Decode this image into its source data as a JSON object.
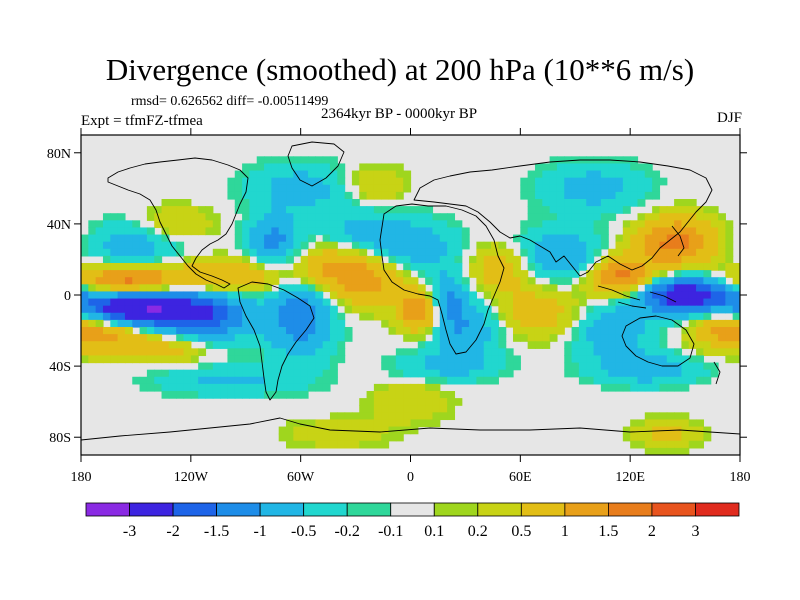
{
  "title": "Divergence (smoothed) at 200 hPa (10**6 m/s)",
  "stats": "rmsd= 0.626562 diff= -0.00511499",
  "period": "2364kyr BP - 0000kyr BP",
  "experiment": "Expt = tfmFZ-tfmea",
  "season": "DJF",
  "axes": {
    "y_ticks": [
      {
        "label": "80N",
        "lat": 80
      },
      {
        "label": "40N",
        "lat": 40
      },
      {
        "label": "0",
        "lat": 0
      },
      {
        "label": "40S",
        "lat": -40
      },
      {
        "label": "80S",
        "lat": -80
      }
    ],
    "x_ticks": [
      {
        "label": "180",
        "lon": -180
      },
      {
        "label": "120W",
        "lon": -120
      },
      {
        "label": "60W",
        "lon": -60
      },
      {
        "label": "0",
        "lon": 0
      },
      {
        "label": "60E",
        "lon": 60
      },
      {
        "label": "120E",
        "lon": 120
      },
      {
        "label": "180",
        "lon": 180
      }
    ],
    "lon_range": [
      -180,
      180
    ],
    "lat_range": [
      -90,
      90
    ]
  },
  "colorbar": {
    "colors": [
      "#8a2ae3",
      "#3d24e0",
      "#1e64e8",
      "#1e8de8",
      "#21b6e5",
      "#21d7cf",
      "#2fd79a",
      "#e6e6e6",
      "#9fd61e",
      "#c8d315",
      "#e2be16",
      "#e8a019",
      "#e87d1c",
      "#e8541e",
      "#e02b1e"
    ],
    "labels": [
      "-3",
      "-2",
      "-1.5",
      "-1",
      "-0.5",
      "-0.2",
      "-0.1",
      "0.1",
      "0.2",
      "0.5",
      "1",
      "1.5",
      "2",
      "3"
    ]
  },
  "field_blobs": [
    {
      "lon": -150,
      "lat": -8,
      "rl": 50,
      "rh": 8,
      "v": -3.2
    },
    {
      "lon": -110,
      "lat": -12,
      "rl": 35,
      "rh": 10,
      "v": -1.4
    },
    {
      "lon": -155,
      "lat": 8,
      "rl": 40,
      "rh": 6,
      "v": 2.0
    },
    {
      "lon": -100,
      "lat": 10,
      "rl": 45,
      "rh": 7,
      "v": 1.1
    },
    {
      "lon": -165,
      "lat": -20,
      "rl": 35,
      "rh": 8,
      "v": 1.6
    },
    {
      "lon": -130,
      "lat": -30,
      "rl": 30,
      "rh": 6,
      "v": 0.7
    },
    {
      "lon": -150,
      "lat": 28,
      "rl": 35,
      "rh": 10,
      "v": -0.8
    },
    {
      "lon": -130,
      "lat": 40,
      "rl": 30,
      "rh": 7,
      "v": 0.6
    },
    {
      "lon": -75,
      "lat": 30,
      "rl": 20,
      "rh": 10,
      "v": -1.2
    },
    {
      "lon": -60,
      "lat": -12,
      "rl": 25,
      "rh": 16,
      "v": -1.4
    },
    {
      "lon": -40,
      "lat": 15,
      "rl": 35,
      "rh": 10,
      "v": 1.2
    },
    {
      "lon": -20,
      "lat": 5,
      "rl": 30,
      "rh": 10,
      "v": 0.8
    },
    {
      "lon": -30,
      "lat": 35,
      "rl": 30,
      "rh": 10,
      "v": -0.6
    },
    {
      "lon": 0,
      "lat": 28,
      "rl": 35,
      "rh": 10,
      "v": -0.9
    },
    {
      "lon": 5,
      "lat": -10,
      "rl": 15,
      "rh": 8,
      "v": 1.6
    },
    {
      "lon": 20,
      "lat": 0,
      "rl": 15,
      "rh": 10,
      "v": -0.9
    },
    {
      "lon": 30,
      "lat": -18,
      "rl": 28,
      "rh": 12,
      "v": -1.0
    },
    {
      "lon": 50,
      "lat": 15,
      "rl": 25,
      "rh": 10,
      "v": 0.9
    },
    {
      "lon": 70,
      "lat": -10,
      "rl": 35,
      "rh": 10,
      "v": 0.8
    },
    {
      "lon": 80,
      "lat": 22,
      "rl": 35,
      "rh": 10,
      "v": -1.0
    },
    {
      "lon": 115,
      "lat": 10,
      "rl": 25,
      "rh": 8,
      "v": 1.8
    },
    {
      "lon": 145,
      "lat": 30,
      "rl": 30,
      "rh": 10,
      "v": 1.7
    },
    {
      "lon": 150,
      "lat": 0,
      "rl": 35,
      "rh": 7,
      "v": -2.6
    },
    {
      "lon": 110,
      "lat": -20,
      "rl": 30,
      "rh": 12,
      "v": -0.9
    },
    {
      "lon": 170,
      "lat": -18,
      "rl": 25,
      "rh": 8,
      "v": 1.0
    },
    {
      "lon": -100,
      "lat": -48,
      "rl": 55,
      "rh": 6,
      "v": -0.6
    },
    {
      "lon": 20,
      "lat": -40,
      "rl": 40,
      "rh": 6,
      "v": -0.6
    },
    {
      "lon": 130,
      "lat": -42,
      "rl": 40,
      "rh": 6,
      "v": -0.8
    },
    {
      "lon": 0,
      "lat": -60,
      "rl": 30,
      "rh": 8,
      "v": 0.5
    },
    {
      "lon": -60,
      "lat": 60,
      "rl": 40,
      "rh": 10,
      "v": -0.7
    },
    {
      "lon": 100,
      "lat": 60,
      "rl": 40,
      "rh": 10,
      "v": -0.7
    },
    {
      "lon": -20,
      "lat": 62,
      "rl": 25,
      "rh": 8,
      "v": 0.5
    },
    {
      "lon": 140,
      "lat": -78,
      "rl": 25,
      "rh": 6,
      "v": 0.6
    },
    {
      "lon": -40,
      "lat": -78,
      "rl": 40,
      "rh": 6,
      "v": 0.4
    }
  ]
}
